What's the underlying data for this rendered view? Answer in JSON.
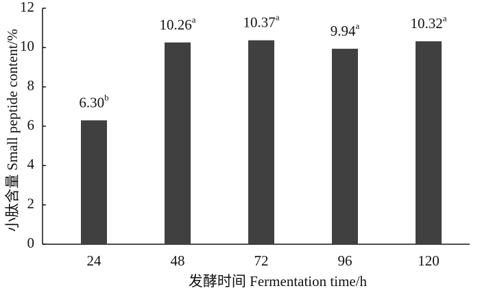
{
  "chart_data": {
    "type": "bar",
    "x_label": "发酵时间  Fermentation time/h",
    "y_label": "小肽含量  Small peptide content/%",
    "categories": [
      "24",
      "48",
      "72",
      "96",
      "120"
    ],
    "values": [
      6.3,
      10.26,
      10.37,
      9.94,
      10.32
    ],
    "value_labels": [
      "6.30",
      "10.26",
      "10.37",
      "9.94",
      "10.32"
    ],
    "significance": [
      "b",
      "a",
      "a",
      "a",
      "a"
    ],
    "color": "#404040",
    "ylim": [
      0,
      12
    ],
    "yticks": [
      0,
      2,
      4,
      6,
      8,
      10,
      12
    ],
    "grid": false
  }
}
